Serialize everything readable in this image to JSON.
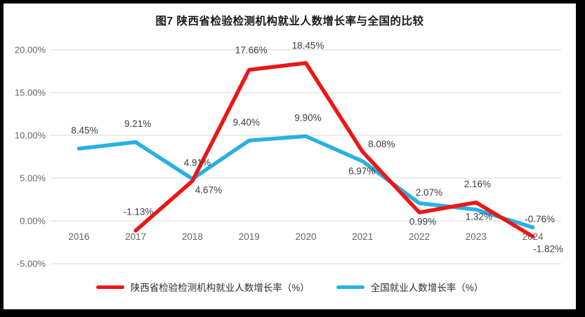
{
  "title": "图7 陕西省检验检测机构就业人数增长率与全国的比较",
  "chart_data": {
    "type": "line",
    "title": "图7 陕西省检验检测机构就业人数增长率与全国的比较",
    "categories": [
      "2016",
      "2017",
      "2018",
      "2019",
      "2020",
      "2021",
      "2022",
      "2023",
      "2024"
    ],
    "series": [
      {
        "name": "陕西省检验检测机构就业人数增长率（%）",
        "color": "#ed1515",
        "values": [
          null,
          -1.13,
          4.67,
          17.66,
          18.45,
          8.08,
          0.99,
          2.16,
          -1.82
        ],
        "labels": [
          "",
          "-1.13%",
          "4.67%",
          "17.66%",
          "18.45%",
          "8.08%",
          "0.99%",
          "2.16%",
          "-1.82%"
        ],
        "label_offsets": [
          [
            0,
            0
          ],
          [
            4,
            -27
          ],
          [
            23,
            13
          ],
          [
            3,
            -28
          ],
          [
            3,
            -25
          ],
          [
            27,
            -11
          ],
          [
            5,
            13
          ],
          [
            2,
            -26
          ],
          [
            22,
            18
          ]
        ]
      },
      {
        "name": "全国就业人数增长率（%）",
        "color": "#29b0e3",
        "values": [
          8.45,
          9.21,
          4.91,
          9.4,
          9.9,
          6.97,
          2.07,
          1.32,
          -0.76
        ],
        "labels": [
          "8.45%",
          "9.21%",
          "4.91%",
          "9.40%",
          "9.90%",
          "6.97%",
          "2.07%",
          "1.32%",
          "-0.76%"
        ],
        "label_offsets": [
          [
            8,
            -26
          ],
          [
            3,
            -26
          ],
          [
            7,
            -23
          ],
          [
            -4,
            -26
          ],
          [
            3,
            -26
          ],
          [
            -1,
            14
          ],
          [
            14,
            -15
          ],
          [
            4,
            10
          ],
          [
            10,
            -12
          ]
        ]
      }
    ],
    "y_ticks": [
      {
        "label": "20.00%",
        "value": 20
      },
      {
        "label": "15.00%",
        "value": 15
      },
      {
        "label": "10.00%",
        "value": 10
      },
      {
        "label": "5.00%",
        "value": 5
      },
      {
        "label": "0.00%",
        "value": 0
      },
      {
        "label": "-5.00%",
        "value": -5
      }
    ],
    "ylim": [
      -5,
      20
    ],
    "grid": true,
    "legend_position": "bottom"
  },
  "colors": {
    "grid": "#d9d9d9",
    "axis_text": "#666666",
    "data_label": "#3d3d3d",
    "frame": "#000000"
  }
}
